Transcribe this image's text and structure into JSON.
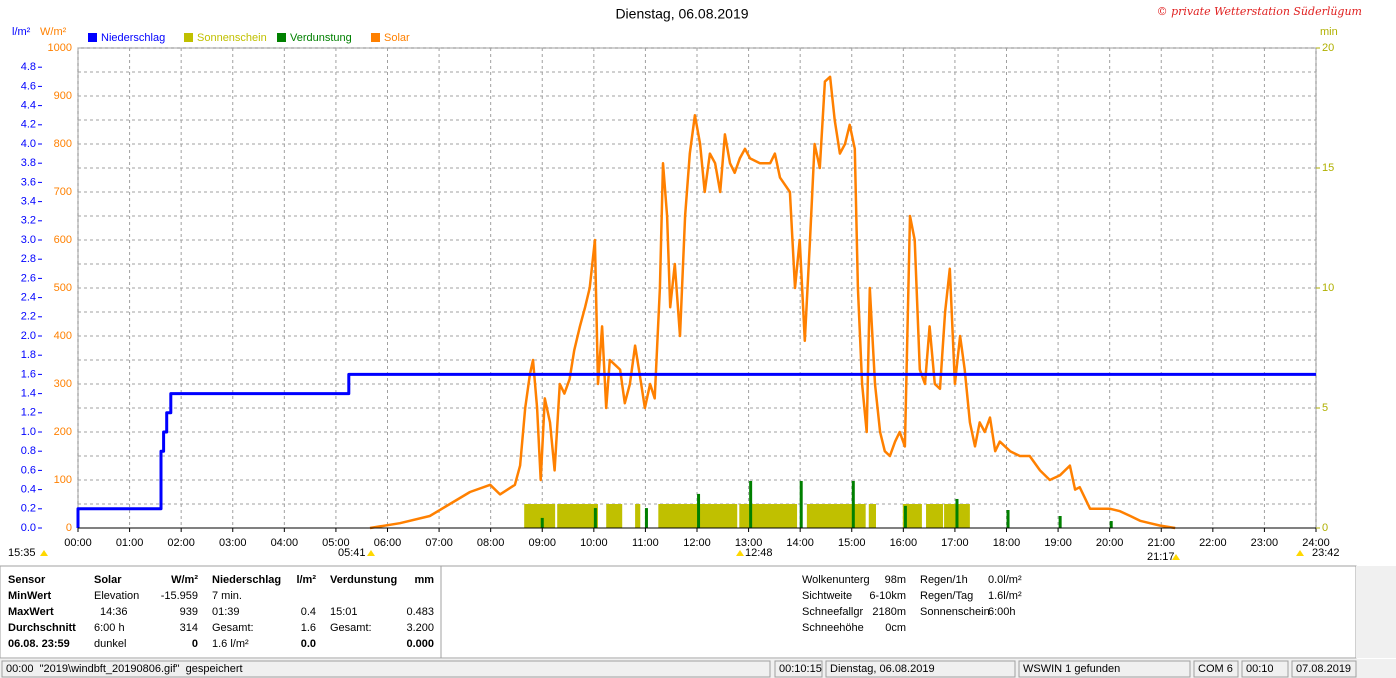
{
  "chart_data": {
    "type": "combo",
    "title": "Dienstag, 06.08.2019",
    "credit": "© private Wetterstation Süderlügum",
    "y_label": "l/m²",
    "y2_label": "W/m²",
    "y3_label": "min",
    "xlim": [
      0,
      24
    ],
    "xticks": [
      {
        "value": 0,
        "label": "00:00"
      },
      {
        "value": 1,
        "label": "01:00"
      },
      {
        "value": 2,
        "label": "02:00"
      },
      {
        "value": 3,
        "label": "03:00"
      },
      {
        "value": 4,
        "label": "04:00"
      },
      {
        "value": 5,
        "label": "05:00"
      },
      {
        "value": 6,
        "label": "06:00"
      },
      {
        "value": 7,
        "label": "07:00"
      },
      {
        "value": 8,
        "label": "08:00"
      },
      {
        "value": 9,
        "label": "09:00"
      },
      {
        "value": 10,
        "label": "10:00"
      },
      {
        "value": 11,
        "label": "11:00"
      },
      {
        "value": 12,
        "label": "12:00"
      },
      {
        "value": 13,
        "label": "13:00"
      },
      {
        "value": 14,
        "label": "14:00"
      },
      {
        "value": 15,
        "label": "15:00"
      },
      {
        "value": 16,
        "label": "16:00"
      },
      {
        "value": 17,
        "label": "17:00"
      },
      {
        "value": 18,
        "label": "18:00"
      },
      {
        "value": 19,
        "label": "19:00"
      },
      {
        "value": 20,
        "label": "20:00"
      },
      {
        "value": 21,
        "label": "21:00"
      },
      {
        "value": 22,
        "label": "22:00"
      },
      {
        "value": 23,
        "label": "23:00"
      },
      {
        "value": 24,
        "label": "24:00"
      }
    ],
    "ylim": [
      0,
      5
    ],
    "yticks": [
      {
        "value": 0,
        "label": "0.0"
      },
      0.2,
      0.4,
      0.6,
      0.8,
      {
        "value": 1,
        "label": "1.0"
      },
      1.2,
      1.4,
      1.6,
      1.8,
      {
        "value": 2,
        "label": "2.0"
      },
      2.2,
      2.4,
      2.6,
      2.8,
      {
        "value": 3,
        "label": "3.0"
      },
      3.2,
      3.4,
      3.6,
      3.8,
      {
        "value": 4,
        "label": "4.0"
      },
      4.2,
      4.4,
      4.6,
      4.8
    ],
    "y2lim": [
      0,
      1000
    ],
    "y2ticks": [
      0,
      100,
      200,
      300,
      400,
      500,
      600,
      700,
      800,
      900,
      1000
    ],
    "y2minorticks": [
      50,
      150,
      250,
      350,
      450,
      550,
      650,
      750,
      850,
      950
    ],
    "y3lim": [
      0,
      20
    ],
    "y3ticks": [
      0,
      5,
      10,
      15,
      20
    ],
    "grid": true,
    "annotations": [
      "15:35",
      "05:41",
      "12:48",
      "21:17",
      "23:42"
    ],
    "series": [
      {
        "name": "Niederschlag",
        "color": "#0000ff",
        "type": "line",
        "axis": "y",
        "x": [
          0,
          0,
          1.61,
          1.61,
          1.66,
          1.66,
          1.72,
          1.72,
          1.8,
          1.8,
          5.25,
          5.25,
          24
        ],
        "values": [
          0,
          0.2,
          0.2,
          0.8,
          0.8,
          1.0,
          1.0,
          1.2,
          1.2,
          1.4,
          1.4,
          1.6,
          1.6
        ]
      },
      {
        "name": "Sonnenschein",
        "color": "#c0c000",
        "type": "interval",
        "axis": "y3",
        "x": [
          8.65,
          9.29,
          10.24,
          10.8,
          11.25,
          12.82,
          14.13,
          15.33,
          15.99,
          16.44,
          16.79
        ],
        "x_end": [
          9.25,
          10.08,
          10.55,
          10.9,
          12.78,
          13.94,
          15.27,
          15.47,
          16.36,
          16.77,
          17.29
        ],
        "values": [
          1,
          1,
          1,
          1,
          1,
          1,
          1,
          1,
          1,
          1,
          1
        ]
      },
      {
        "name": "Verdunstung",
        "color": "#008000",
        "type": "spike",
        "axis": "y3",
        "x": [
          9.0,
          10.03,
          11.02,
          12.03,
          13.04,
          14.02,
          15.03,
          16.04,
          17.04,
          18.03,
          19.04,
          20.03
        ],
        "values": [
          0.42,
          0.83,
          0.83,
          1.42,
          1.96,
          1.96,
          1.96,
          0.92,
          1.21,
          0.75,
          0.5,
          0.29
        ]
      },
      {
        "name": "Solar",
        "color": "#ff8000",
        "type": "line",
        "axis": "y2",
        "x": [
          5.66,
          6.24,
          6.82,
          7.21,
          7.6,
          7.99,
          8.18,
          8.47,
          8.57,
          8.67,
          8.76,
          8.82,
          8.9,
          8.97,
          9.05,
          9.15,
          9.24,
          9.34,
          9.43,
          9.53,
          9.62,
          9.73,
          9.83,
          9.92,
          10.02,
          10.08,
          10.16,
          10.24,
          10.31,
          10.41,
          10.51,
          10.6,
          10.7,
          10.8,
          10.89,
          10.99,
          11.09,
          11.18,
          11.28,
          11.34,
          11.42,
          11.48,
          11.57,
          11.67,
          11.77,
          11.86,
          11.96,
          12.06,
          12.15,
          12.25,
          12.35,
          12.45,
          12.54,
          12.64,
          12.73,
          12.83,
          12.93,
          13.03,
          13.22,
          13.42,
          13.51,
          13.61,
          13.8,
          13.9,
          13.99,
          14.09,
          14.19,
          14.28,
          14.38,
          14.48,
          14.58,
          14.67,
          14.77,
          14.87,
          14.96,
          15.06,
          15.12,
          15.2,
          15.29,
          15.35,
          15.45,
          15.55,
          15.64,
          15.74,
          15.84,
          15.93,
          16.03,
          16.13,
          16.22,
          16.32,
          16.42,
          16.51,
          16.61,
          16.71,
          16.81,
          16.9,
          17.0,
          17.1,
          17.19,
          17.29,
          17.39,
          17.48,
          17.58,
          17.68,
          17.78,
          17.87,
          18.07,
          18.26,
          18.45,
          18.65,
          18.84,
          19.04,
          19.23,
          19.33,
          19.42,
          19.62,
          19.81,
          20.01,
          20.2,
          20.4,
          20.59,
          20.78,
          20.98,
          21.27
        ],
        "values": [
          0,
          10,
          25,
          50,
          75,
          90,
          70,
          90,
          130,
          250,
          320,
          350,
          250,
          100,
          270,
          220,
          120,
          300,
          280,
          310,
          370,
          420,
          460,
          500,
          600,
          300,
          420,
          250,
          350,
          340,
          330,
          260,
          300,
          380,
          320,
          250,
          300,
          270,
          500,
          760,
          650,
          460,
          550,
          400,
          650,
          780,
          860,
          800,
          700,
          780,
          760,
          700,
          820,
          760,
          740,
          770,
          790,
          770,
          760,
          760,
          780,
          730,
          700,
          500,
          600,
          390,
          600,
          800,
          750,
          930,
          940,
          850,
          780,
          800,
          840,
          790,
          500,
          300,
          200,
          500,
          300,
          200,
          160,
          150,
          180,
          200,
          170,
          650,
          600,
          330,
          300,
          420,
          300,
          290,
          450,
          540,
          300,
          400,
          330,
          220,
          170,
          220,
          200,
          230,
          160,
          180,
          160,
          150,
          150,
          120,
          100,
          110,
          130,
          80,
          85,
          40,
          40,
          40,
          35,
          25,
          15,
          10,
          5,
          0
        ]
      }
    ]
  },
  "summary": {
    "labels": [
      "Sensor",
      "MinWert",
      "MaxWert",
      "Durchschnitt",
      "06.08. 23:59"
    ],
    "solar": {
      "header": "Solar",
      "unit": "W/m²",
      "rows": [
        [
          "Elevation",
          "-15.959"
        ],
        [
          "14:36",
          "939"
        ],
        [
          "6:00 h",
          "314"
        ],
        [
          "dunkel",
          "0"
        ]
      ]
    },
    "rain": {
      "header": "Niederschlag",
      "unit": "l/m²",
      "rows": [
        [
          "7 min."
        ],
        [
          "01:39",
          "0.4"
        ],
        [
          "Gesamt:",
          "1.6"
        ],
        [
          "1.6 l/m²",
          "0.0"
        ]
      ]
    },
    "evap": {
      "header": "Verdunstung",
      "unit": "mm",
      "rows": [
        [
          "15:01",
          "0.483"
        ],
        [
          "Gesamt:",
          "3.200"
        ],
        [
          "0.000"
        ]
      ]
    },
    "extra1": [
      [
        "Wolkenunterg",
        "98m"
      ],
      [
        "Sichtweite",
        "6-10km"
      ],
      [
        "Schneefallgr",
        "2180m"
      ],
      [
        "Schneehöhe",
        "0cm"
      ]
    ],
    "extra2": [
      [
        "Regen/1h",
        "0.0l/m²"
      ],
      [
        "Regen/Tag",
        "1.6l/m²"
      ],
      [
        "Sonnenschein",
        "6:00h"
      ]
    ]
  },
  "status_bar": [
    "00:00  \"2019\\windbft_20190806.gif\"  gespeichert",
    "00:10:15",
    "Dienstag, 06.08.2019",
    "WSWIN 1 gefunden",
    "COM 6",
    "00:10",
    "07.08.2019"
  ]
}
